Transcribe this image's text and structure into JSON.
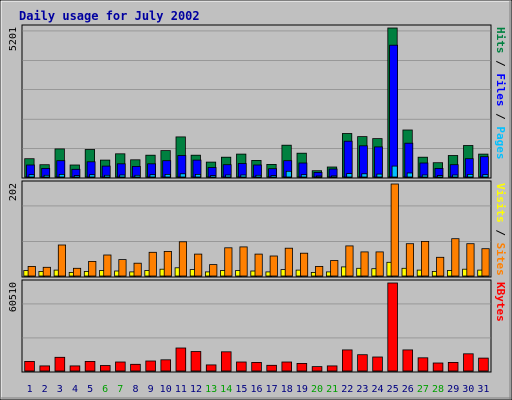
{
  "chart_data": {
    "type": "bar",
    "title": "Daily usage for July 2002",
    "days": [
      "1",
      "2",
      "3",
      "4",
      "5",
      "6",
      "7",
      "8",
      "9",
      "10",
      "11",
      "12",
      "13",
      "14",
      "15",
      "16",
      "17",
      "18",
      "19",
      "20",
      "21",
      "22",
      "23",
      "24",
      "25",
      "26",
      "27",
      "28",
      "29",
      "30",
      "31"
    ],
    "weekend_days": [
      "6",
      "7",
      "13",
      "14",
      "20",
      "21",
      "27",
      "28"
    ],
    "colors": {
      "frame_bg": "#c0c0c0",
      "plot_bg": "#c0c0c0",
      "title": "#0000a0",
      "hits": "#008040",
      "files": "#0000ff",
      "pages": "#00c0ff",
      "visits": "#ffff00",
      "sites": "#ff8000",
      "kbytes": "#ff0000",
      "weekday_label": "#000080",
      "weekend_label": "#00a000",
      "gridline": "#808080"
    },
    "panels": [
      {
        "id": "hits-files-pages",
        "max_label": "5201",
        "ylim": [
          0,
          5201
        ],
        "side_label_parts": [
          {
            "text": "Pages",
            "color": "#00c0ff"
          },
          {
            "text": " / ",
            "color": "#000000"
          },
          {
            "text": "Files",
            "color": "#0000ff"
          },
          {
            "text": " / ",
            "color": "#000000"
          },
          {
            "text": "Hits",
            "color": "#008040"
          }
        ],
        "series": [
          {
            "name": "Hits",
            "values": [
              640,
              430,
              980,
              420,
              960,
              590,
              810,
              600,
              760,
              920,
              1400,
              760,
              520,
              690,
              800,
              580,
              440,
              1110,
              830,
              220,
              350,
              1520,
              1410,
              1340,
              5201,
              1640,
              690,
              500,
              750,
              1100,
              800
            ]
          },
          {
            "name": "Files",
            "values": [
              420,
              300,
              570,
              270,
              530,
              380,
              460,
              370,
              460,
              570,
              750,
              590,
              330,
              430,
              470,
              420,
              290,
              570,
              490,
              160,
              280,
              1250,
              1090,
              1050,
              4600,
              1180,
              490,
              300,
              430,
              640,
              710
            ]
          },
          {
            "name": "Pages",
            "values": [
              80,
              60,
              90,
              50,
              80,
              60,
              70,
              60,
              80,
              90,
              110,
              90,
              50,
              70,
              70,
              60,
              50,
              200,
              80,
              30,
              40,
              120,
              110,
              100,
              380,
              140,
              70,
              50,
              70,
              90,
              80
            ]
          }
        ]
      },
      {
        "id": "visits-sites",
        "max_label": "202",
        "ylim": [
          0,
          202
        ],
        "side_label_parts": [
          {
            "text": "Sites",
            "color": "#ff8000"
          },
          {
            "text": " / ",
            "color": "#000000"
          },
          {
            "text": "Visits",
            "color": "#ffff00"
          }
        ],
        "series": [
          {
            "name": "Visits",
            "values": [
              12,
              10,
              13,
              8,
              10,
              12,
              11,
              9,
              12,
              15,
              18,
              14,
              9,
              12,
              12,
              11,
              9,
              14,
              13,
              8,
              9,
              20,
              17,
              16,
              30,
              17,
              13,
              10,
              12,
              15,
              13
            ]
          },
          {
            "name": "Sites",
            "values": [
              21,
              19,
              68,
              17,
              32,
              46,
              36,
              28,
              52,
              54,
              75,
              48,
              25,
              62,
              64,
              48,
              44,
              61,
              50,
              21,
              34,
              66,
              53,
              53,
              202,
              71,
              76,
              41,
              82,
              71,
              60
            ]
          }
        ]
      },
      {
        "id": "kbytes",
        "max_label": "60510",
        "ylim": [
          0,
          60510
        ],
        "side_label_parts": [
          {
            "text": "KBytes",
            "color": "#ff0000"
          }
        ],
        "series": [
          {
            "name": "KBytes",
            "values": [
              6600,
              3500,
              9400,
              3500,
              6600,
              3800,
              6200,
              4600,
              6900,
              7700,
              15800,
              13400,
              4200,
              13200,
              6200,
              5900,
              3900,
              6200,
              5200,
              3000,
              3500,
              14500,
              11200,
              9600,
              60510,
              14500,
              9100,
              5500,
              5900,
              11800,
              8900
            ]
          }
        ]
      }
    ]
  }
}
